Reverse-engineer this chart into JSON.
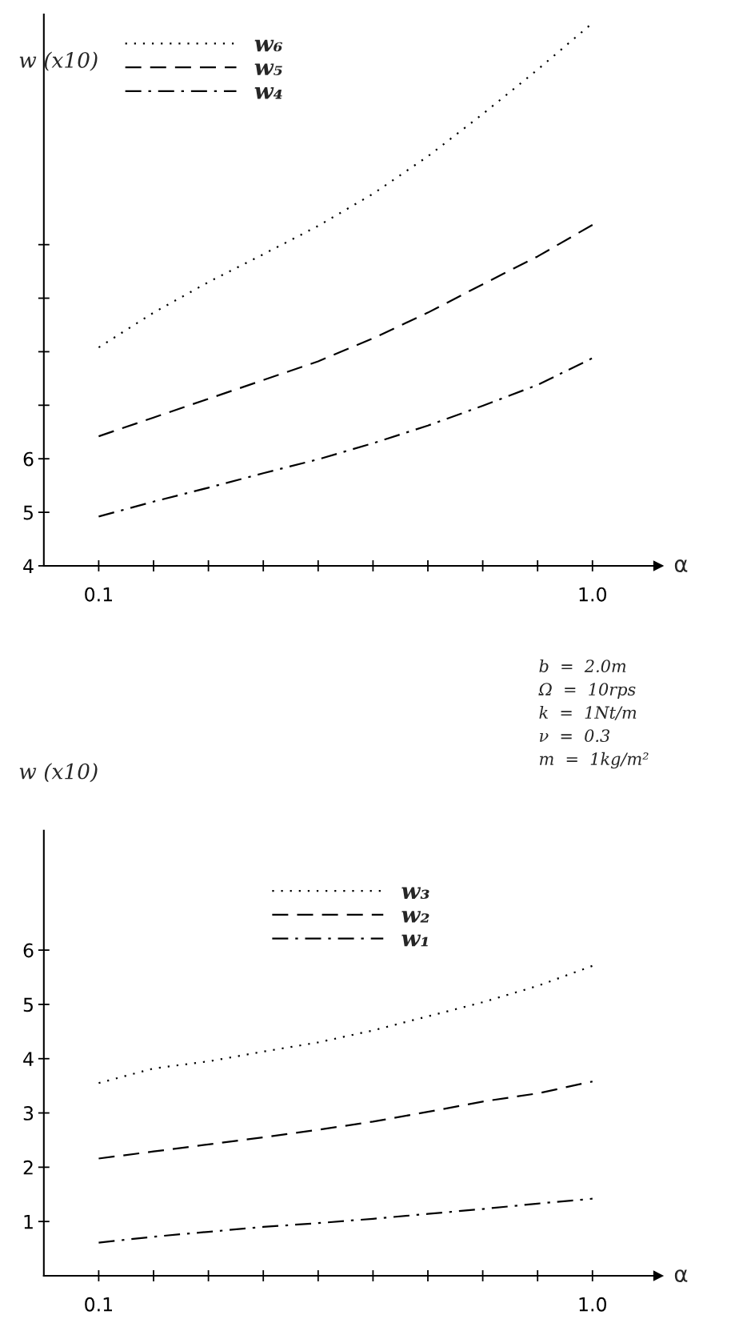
{
  "chart_data": [
    {
      "type": "line",
      "ylabel": "w (x10)",
      "xlabel": "α",
      "x": [
        0.1,
        0.2,
        0.3,
        0.4,
        0.5,
        0.6,
        0.7,
        0.8,
        0.9,
        1.0
      ],
      "series": [
        {
          "name": "w₆",
          "color": "#000000",
          "line_style": "dotted",
          "values": [
            8.08,
            8.73,
            9.3,
            9.82,
            10.35,
            10.95,
            11.65,
            12.44,
            13.27,
            14.14
          ]
        },
        {
          "name": "w₅",
          "color": "#000000",
          "line_style": "dashed",
          "values": [
            6.42,
            6.77,
            7.12,
            7.47,
            7.82,
            8.25,
            8.73,
            9.26,
            9.78,
            10.37
          ]
        },
        {
          "name": "w₄",
          "color": "#000000",
          "line_style": "dashdot",
          "values": [
            4.92,
            5.2,
            5.46,
            5.73,
            5.99,
            6.29,
            6.62,
            6.99,
            7.38,
            7.88
          ]
        }
      ],
      "xlim": [
        0,
        1.12
      ],
      "ylim": [
        4,
        14.3
      ],
      "xticks": [
        0.1,
        {
          "value": 0.2,
          "label": null
        },
        {
          "value": 0.3,
          "label": null
        },
        {
          "value": 0.4,
          "label": null
        },
        {
          "value": 0.5,
          "label": null
        },
        {
          "value": 0.6,
          "label": null
        },
        {
          "value": 0.7,
          "label": null
        },
        {
          "value": 0.8,
          "label": null
        },
        {
          "value": 0.9,
          "label": null
        },
        {
          "value": 1,
          "label": "1.0"
        }
      ],
      "yticks": [
        4,
        5,
        6,
        {
          "value": 7,
          "label": null
        },
        {
          "value": 8,
          "label": null
        },
        {
          "value": 9,
          "label": null
        },
        {
          "value": 10,
          "label": null
        }
      ],
      "legend": "top left",
      "grid": false
    },
    {
      "type": "line",
      "ylabel": "w (x10)",
      "xlabel": "α",
      "x": [
        0.1,
        0.2,
        0.3,
        0.4,
        0.5,
        0.6,
        0.7,
        0.8,
        0.9,
        1.0
      ],
      "series": [
        {
          "name": "w₃",
          "color": "#000000",
          "line_style": "dotted",
          "values": [
            3.55,
            3.82,
            3.95,
            4.13,
            4.3,
            4.52,
            4.78,
            5.04,
            5.34,
            5.71
          ]
        },
        {
          "name": "w₂",
          "color": "#000000",
          "line_style": "dashed",
          "values": [
            2.16,
            2.29,
            2.42,
            2.55,
            2.69,
            2.84,
            3.02,
            3.21,
            3.36,
            3.58
          ]
        },
        {
          "name": "w₁",
          "color": "#000000",
          "line_style": "dashdot",
          "values": [
            0.61,
            0.72,
            0.81,
            0.9,
            0.97,
            1.05,
            1.14,
            1.23,
            1.33,
            1.42
          ]
        }
      ],
      "xlim": [
        0,
        1.12
      ],
      "ylim": [
        0,
        8.2
      ],
      "xticks": [
        0.1,
        {
          "value": 0.2,
          "label": null
        },
        {
          "value": 0.3,
          "label": null
        },
        {
          "value": 0.4,
          "label": null
        },
        {
          "value": 0.5,
          "label": null
        },
        {
          "value": 0.6,
          "label": null
        },
        {
          "value": 0.7,
          "label": null
        },
        {
          "value": 0.8,
          "label": null
        },
        {
          "value": 0.9,
          "label": null
        },
        {
          "value": 1,
          "label": "1.0"
        }
      ],
      "yticks": [
        1,
        2,
        3,
        4,
        5,
        6
      ],
      "legend": "top",
      "grid": false,
      "annotations": [
        "b  =  2.0m",
        "Ω  =  10rps",
        "k  =  1Nt/m",
        "ν  =  0.3",
        "m  =  1kg/m²"
      ]
    }
  ]
}
